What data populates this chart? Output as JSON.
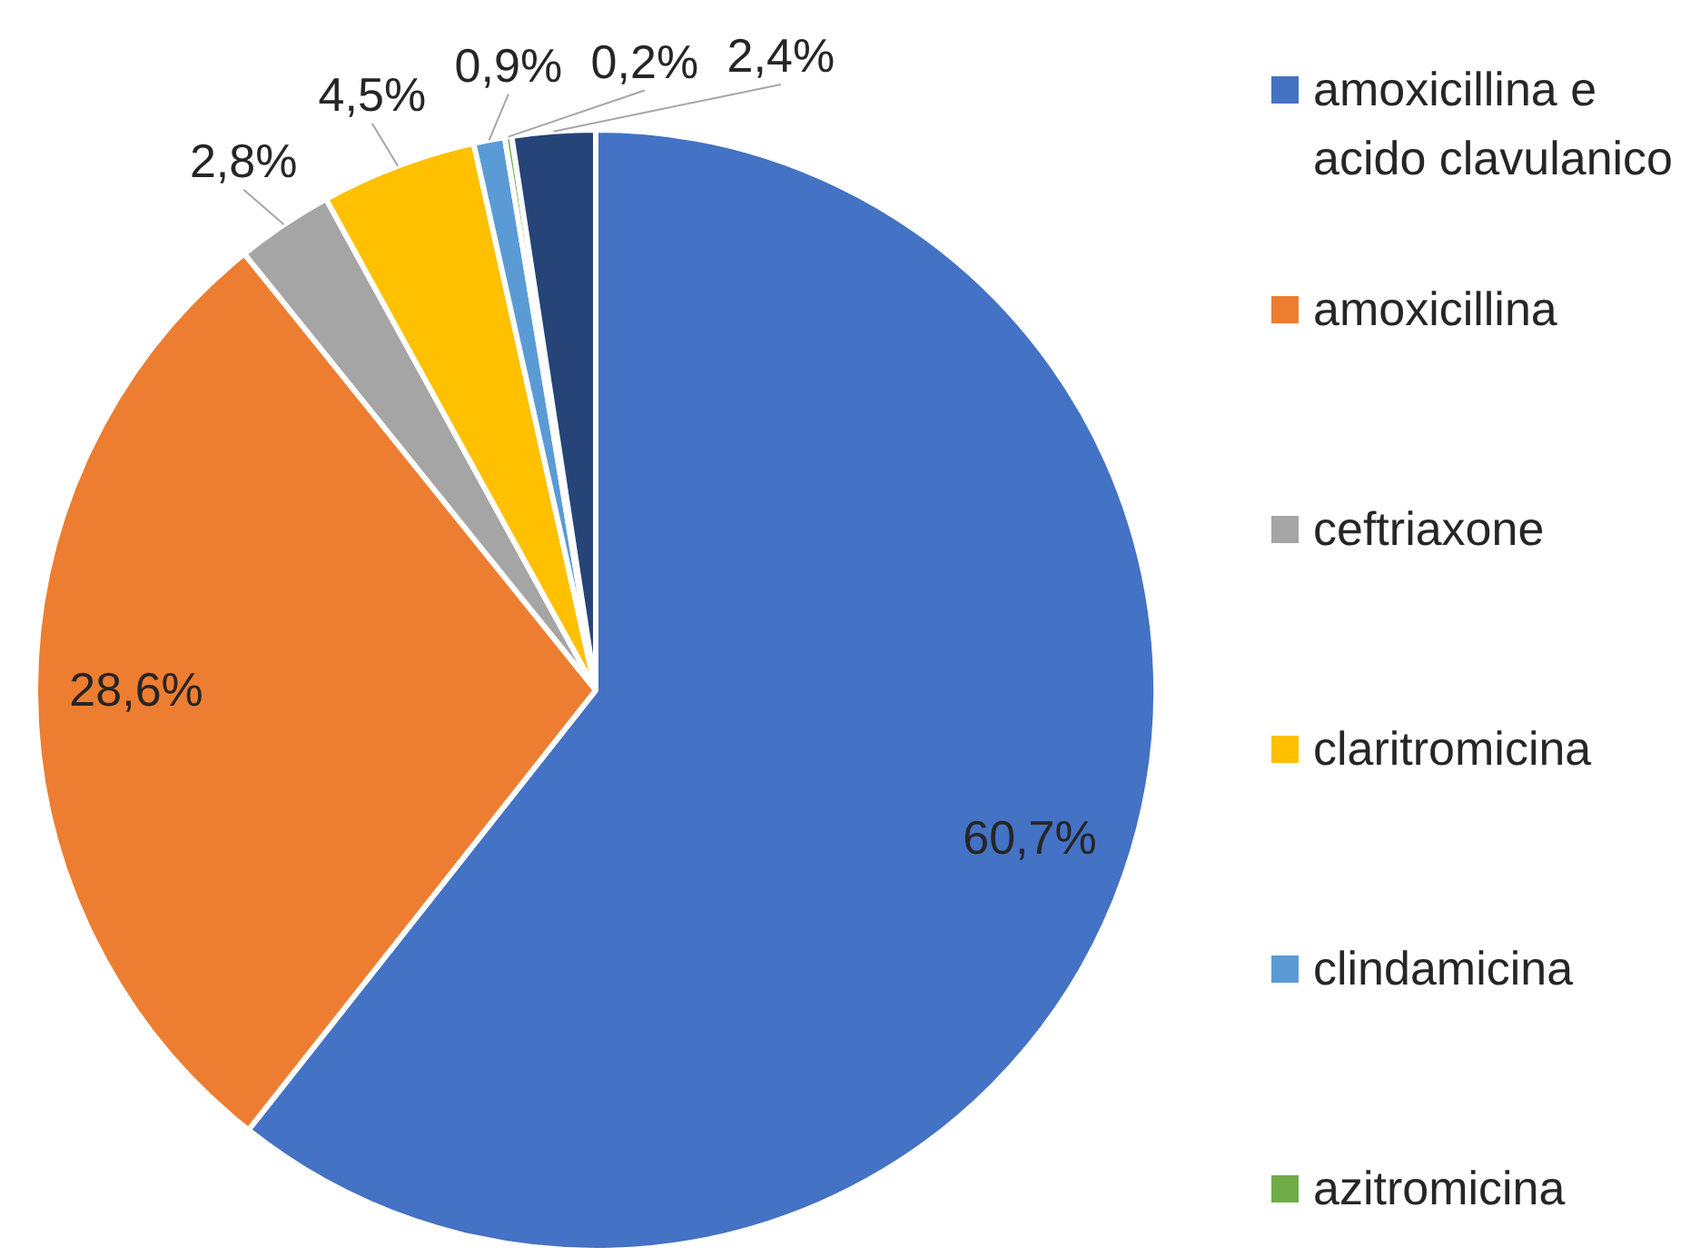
{
  "chart_data": {
    "type": "pie",
    "categories": [
      "amoxicillina e acido clavulanico",
      "amoxicillina",
      "ceftriaxone",
      "claritromicina",
      "clindamicina",
      "azitromicina",
      null
    ],
    "values": [
      60.7,
      28.6,
      2.8,
      4.5,
      0.9,
      0.2,
      2.4
    ],
    "colors": [
      "#4472c4",
      "#ed7d31",
      "#a5a5a5",
      "#ffc000",
      "#5b9bd5",
      "#70ad47",
      "#264478"
    ],
    "value_labels": [
      "60,7%",
      "28,6%",
      "2,8%",
      "4,5%",
      "0,9%",
      "0,2%",
      "2,4%"
    ],
    "legend": "right"
  }
}
